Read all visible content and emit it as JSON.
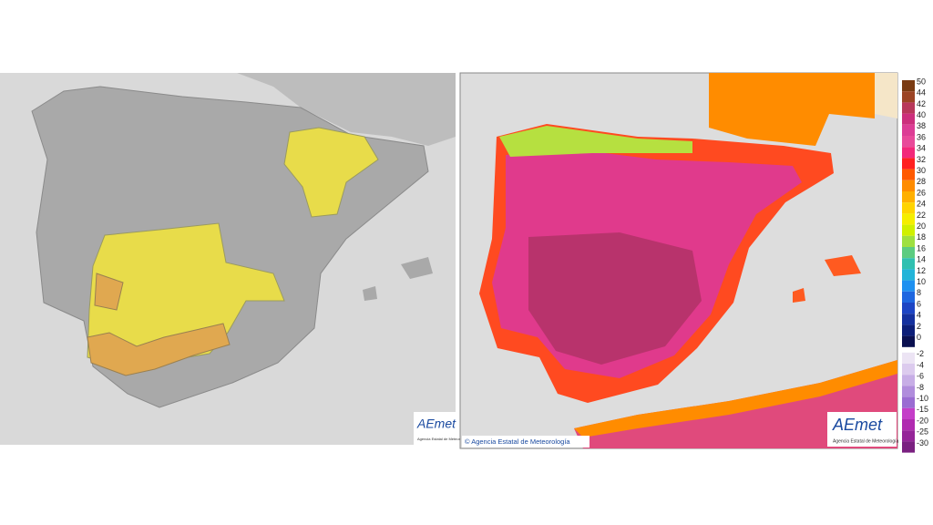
{
  "left_map": {
    "logo": {
      "title": "AEmet",
      "subtitle": "Agencia Estatal de Meteorología"
    }
  },
  "right_map": {
    "credit": "© Agencia Estatal de Meteorología",
    "logo": {
      "title": "AEmet",
      "subtitle": "Agencia Estatal de Meteorología"
    }
  },
  "legend": {
    "labels": [
      50,
      44,
      42,
      40,
      38,
      36,
      34,
      32,
      30,
      28,
      26,
      24,
      22,
      20,
      18,
      16,
      14,
      12,
      10,
      8,
      6,
      4,
      2,
      0,
      -2,
      -4,
      -6,
      -8,
      -10,
      -15,
      -20,
      -25,
      -30
    ],
    "colors": [
      "#7a3b12",
      "#9c4424",
      "#b8385a",
      "#cc2f7c",
      "#dc3d95",
      "#e84a9a",
      "#f2287a",
      "#ff2020",
      "#ff5a00",
      "#ff8c00",
      "#ffb000",
      "#ffd400",
      "#f5ee00",
      "#d0f000",
      "#9ee040",
      "#5ccc80",
      "#30c0b0",
      "#22b4d8",
      "#1e90f0",
      "#1e66e0",
      "#1c44c4",
      "#14309e",
      "#0c1e78",
      "#0a1050",
      "#ece4f4",
      "#dccbee",
      "#c7aee6",
      "#b08ddc",
      "#9a6cd2",
      "#c43ec8",
      "#b02ab0",
      "#952598",
      "#7a2080"
    ]
  }
}
